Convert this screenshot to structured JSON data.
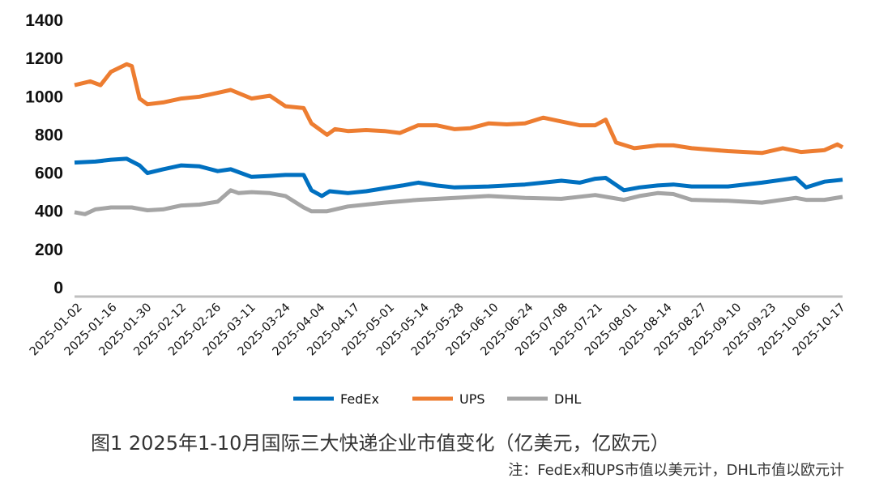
{
  "chart_data": {
    "type": "line",
    "title": "图1  2025年1-10月国际三大快递企业市值变化（亿美元，亿欧元）",
    "note": "注：FedEx和UPS市值以美元计，DHL市值以欧元计",
    "xlabel": "",
    "ylabel": "",
    "ylim": [
      0,
      1400
    ],
    "yticks": [
      0,
      200,
      400,
      600,
      800,
      1000,
      1200,
      1400
    ],
    "xrange": [
      "2025-01-02",
      "2025-10-24"
    ],
    "xticks": [
      "2025-01-02",
      "2025-01-16",
      "2025-01-30",
      "2025-02-12",
      "2025-02-26",
      "2025-03-11",
      "2025-03-24",
      "2025-04-04",
      "2025-04-17",
      "2025-05-01",
      "2025-05-14",
      "2025-05-28",
      "2025-06-10",
      "2025-06-24",
      "2025-07-08",
      "2025-07-21",
      "2025-08-01",
      "2025-08-14",
      "2025-08-27",
      "2025-09-10",
      "2025-09-23",
      "2025-10-06",
      "2025-10-17"
    ],
    "grid": false,
    "legend": "bottom",
    "series": [
      {
        "name": "FedEx",
        "color": "#0070C0",
        "points": [
          [
            "2025-01-02",
            655
          ],
          [
            "2025-01-10",
            660
          ],
          [
            "2025-01-16",
            670
          ],
          [
            "2025-01-22",
            675
          ],
          [
            "2025-01-27",
            640
          ],
          [
            "2025-01-30",
            600
          ],
          [
            "2025-02-05",
            620
          ],
          [
            "2025-02-12",
            640
          ],
          [
            "2025-02-19",
            635
          ],
          [
            "2025-02-26",
            610
          ],
          [
            "2025-03-03",
            620
          ],
          [
            "2025-03-11",
            580
          ],
          [
            "2025-03-18",
            585
          ],
          [
            "2025-03-24",
            590
          ],
          [
            "2025-03-31",
            590
          ],
          [
            "2025-04-03",
            510
          ],
          [
            "2025-04-07",
            480
          ],
          [
            "2025-04-10",
            505
          ],
          [
            "2025-04-17",
            495
          ],
          [
            "2025-04-24",
            505
          ],
          [
            "2025-05-01",
            520
          ],
          [
            "2025-05-08",
            535
          ],
          [
            "2025-05-14",
            550
          ],
          [
            "2025-05-21",
            535
          ],
          [
            "2025-05-28",
            525
          ],
          [
            "2025-06-10",
            530
          ],
          [
            "2025-06-24",
            540
          ],
          [
            "2025-07-01",
            550
          ],
          [
            "2025-07-08",
            560
          ],
          [
            "2025-07-15",
            550
          ],
          [
            "2025-07-21",
            570
          ],
          [
            "2025-07-25",
            575
          ],
          [
            "2025-08-01",
            510
          ],
          [
            "2025-08-07",
            525
          ],
          [
            "2025-08-14",
            535
          ],
          [
            "2025-08-20",
            540
          ],
          [
            "2025-08-27",
            530
          ],
          [
            "2025-09-10",
            530
          ],
          [
            "2025-09-23",
            550
          ],
          [
            "2025-10-01",
            565
          ],
          [
            "2025-10-06",
            575
          ],
          [
            "2025-10-10",
            525
          ],
          [
            "2025-10-17",
            555
          ],
          [
            "2025-10-24",
            565
          ]
        ]
      },
      {
        "name": "UPS",
        "color": "#ED7D31",
        "points": [
          [
            "2025-01-02",
            1060
          ],
          [
            "2025-01-08",
            1080
          ],
          [
            "2025-01-12",
            1060
          ],
          [
            "2025-01-16",
            1130
          ],
          [
            "2025-01-22",
            1170
          ],
          [
            "2025-01-24",
            1160
          ],
          [
            "2025-01-27",
            990
          ],
          [
            "2025-01-30",
            960
          ],
          [
            "2025-02-05",
            970
          ],
          [
            "2025-02-12",
            990
          ],
          [
            "2025-02-19",
            1000
          ],
          [
            "2025-02-26",
            1020
          ],
          [
            "2025-03-03",
            1035
          ],
          [
            "2025-03-11",
            990
          ],
          [
            "2025-03-18",
            1005
          ],
          [
            "2025-03-24",
            950
          ],
          [
            "2025-03-31",
            940
          ],
          [
            "2025-04-03",
            860
          ],
          [
            "2025-04-09",
            800
          ],
          [
            "2025-04-12",
            830
          ],
          [
            "2025-04-17",
            820
          ],
          [
            "2025-04-24",
            825
          ],
          [
            "2025-05-01",
            820
          ],
          [
            "2025-05-07",
            810
          ],
          [
            "2025-05-14",
            850
          ],
          [
            "2025-05-21",
            850
          ],
          [
            "2025-05-28",
            830
          ],
          [
            "2025-06-03",
            835
          ],
          [
            "2025-06-10",
            860
          ],
          [
            "2025-06-17",
            855
          ],
          [
            "2025-06-24",
            860
          ],
          [
            "2025-07-01",
            890
          ],
          [
            "2025-07-08",
            870
          ],
          [
            "2025-07-15",
            850
          ],
          [
            "2025-07-21",
            850
          ],
          [
            "2025-07-25",
            880
          ],
          [
            "2025-07-29",
            760
          ],
          [
            "2025-08-05",
            730
          ],
          [
            "2025-08-14",
            745
          ],
          [
            "2025-08-20",
            745
          ],
          [
            "2025-08-27",
            730
          ],
          [
            "2025-09-10",
            715
          ],
          [
            "2025-09-23",
            705
          ],
          [
            "2025-10-01",
            730
          ],
          [
            "2025-10-08",
            710
          ],
          [
            "2025-10-17",
            720
          ],
          [
            "2025-10-22",
            750
          ],
          [
            "2025-10-24",
            735
          ]
        ]
      },
      {
        "name": "DHL",
        "color": "#A5A5A5",
        "points": [
          [
            "2025-01-02",
            395
          ],
          [
            "2025-01-06",
            385
          ],
          [
            "2025-01-10",
            410
          ],
          [
            "2025-01-16",
            420
          ],
          [
            "2025-01-24",
            420
          ],
          [
            "2025-01-30",
            405
          ],
          [
            "2025-02-05",
            410
          ],
          [
            "2025-02-12",
            430
          ],
          [
            "2025-02-19",
            435
          ],
          [
            "2025-02-26",
            450
          ],
          [
            "2025-03-03",
            510
          ],
          [
            "2025-03-06",
            495
          ],
          [
            "2025-03-11",
            500
          ],
          [
            "2025-03-18",
            495
          ],
          [
            "2025-03-24",
            480
          ],
          [
            "2025-03-31",
            420
          ],
          [
            "2025-04-03",
            400
          ],
          [
            "2025-04-09",
            400
          ],
          [
            "2025-04-17",
            425
          ],
          [
            "2025-05-01",
            445
          ],
          [
            "2025-05-14",
            460
          ],
          [
            "2025-05-28",
            470
          ],
          [
            "2025-06-10",
            480
          ],
          [
            "2025-06-24",
            470
          ],
          [
            "2025-07-08",
            465
          ],
          [
            "2025-07-21",
            485
          ],
          [
            "2025-08-01",
            460
          ],
          [
            "2025-08-07",
            480
          ],
          [
            "2025-08-14",
            495
          ],
          [
            "2025-08-20",
            490
          ],
          [
            "2025-08-27",
            460
          ],
          [
            "2025-09-10",
            455
          ],
          [
            "2025-09-23",
            445
          ],
          [
            "2025-10-06",
            470
          ],
          [
            "2025-10-10",
            460
          ],
          [
            "2025-10-17",
            460
          ],
          [
            "2025-10-24",
            475
          ]
        ]
      }
    ]
  }
}
